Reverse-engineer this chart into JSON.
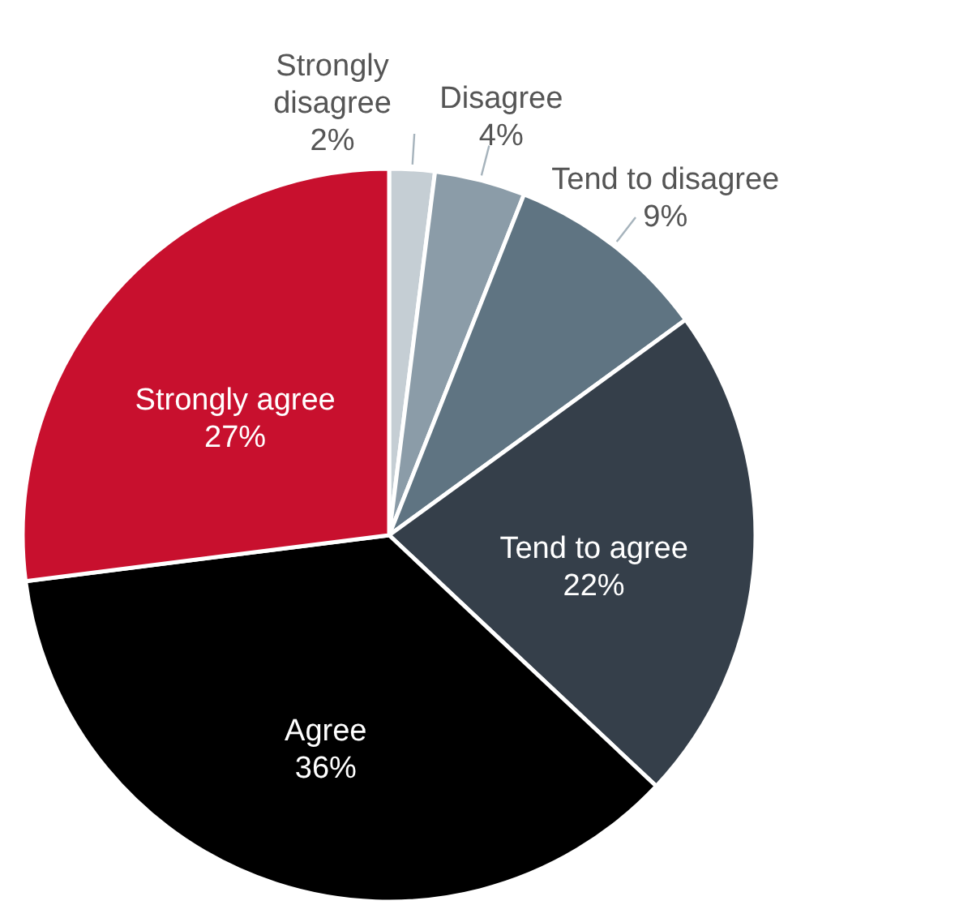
{
  "chart_data": {
    "type": "pie",
    "categories": [
      "Strongly disagree",
      "Disagree",
      "Tend to disagree",
      "Tend to agree",
      "Agree",
      "Strongly agree"
    ],
    "values": [
      2,
      4,
      9,
      22,
      36,
      27
    ],
    "colors": [
      "#c5ced4",
      "#8b9ca8",
      "#5f7482",
      "#353f4a",
      "#000000",
      "#c8102e"
    ],
    "value_labels": [
      "2%",
      "4%",
      "9%",
      "22%",
      "36%",
      "27%"
    ]
  }
}
